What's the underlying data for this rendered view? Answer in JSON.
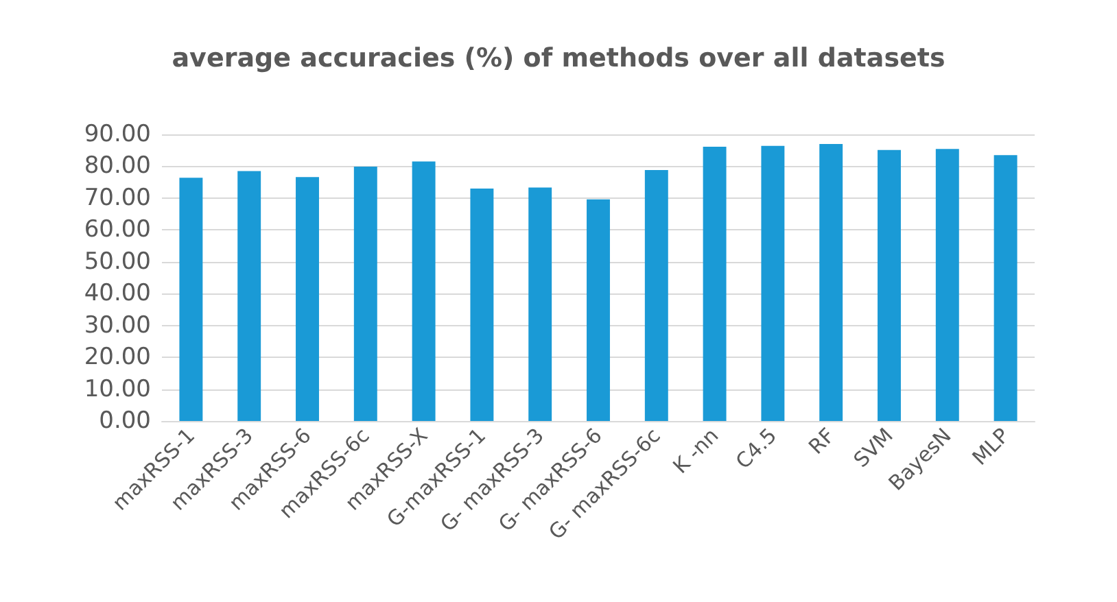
{
  "chart_data": {
    "type": "bar",
    "title": "average accuracies (%) of methods over all datasets",
    "categories": [
      "maxRSS-1",
      "maxRSS-3",
      "maxRSS-6",
      "maxRSS-6c",
      "maxRSS-X",
      "G-maxRSS-1",
      "G- maxRSS-3",
      "G- maxRSS-6",
      "G- maxRSS-6c",
      "K -nn",
      "C4.5",
      "RF",
      "SVM",
      "BayesN",
      "MLP"
    ],
    "values": [
      76.4,
      78.5,
      76.6,
      79.9,
      81.5,
      73.0,
      73.3,
      69.6,
      78.8,
      86.1,
      86.4,
      87.0,
      85.1,
      85.4,
      83.5
    ],
    "color": "#1a9ad6",
    "ylim": [
      0,
      90
    ],
    "yticks": [
      {
        "value": 0,
        "label": "0.00"
      },
      {
        "value": 10,
        "label": "10.00"
      },
      {
        "value": 20,
        "label": "20.00"
      },
      {
        "value": 30,
        "label": "30.00"
      },
      {
        "value": 40,
        "label": "40.00"
      },
      {
        "value": 50,
        "label": "50.00"
      },
      {
        "value": 60,
        "label": "60.00"
      },
      {
        "value": 70,
        "label": "70.00"
      },
      {
        "value": 80,
        "label": "80.00"
      },
      {
        "value": 90,
        "label": "90.00"
      }
    ],
    "grid": true
  }
}
